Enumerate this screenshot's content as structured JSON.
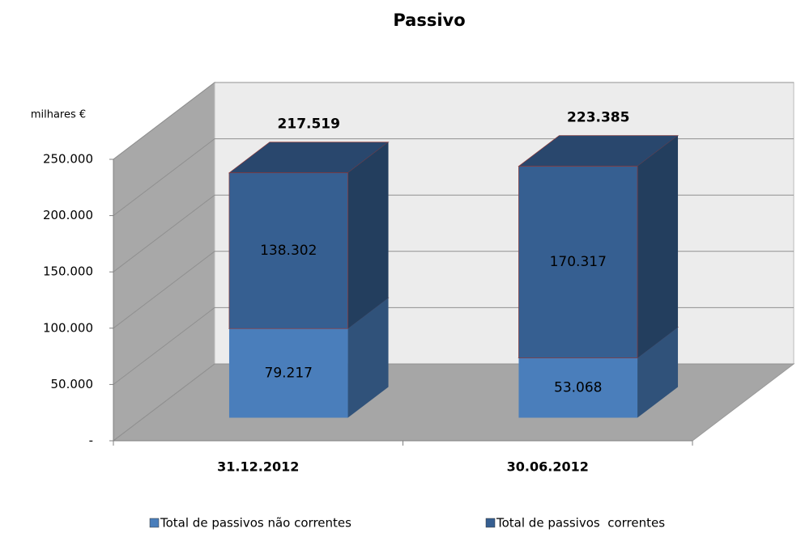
{
  "chart_data": {
    "type": "bar3d_stacked",
    "title": "Passivo",
    "y_label": "milhares €",
    "categories": [
      "31.12.2012",
      "30.06.2012"
    ],
    "series": [
      {
        "name": "Total de passivos não correntes",
        "color": "#4a7ebb",
        "values": [
          79217,
          53068
        ],
        "value_labels": [
          "79.217",
          "53.068"
        ]
      },
      {
        "name": "Total de passivos  correntes",
        "color": "#365f91",
        "values": [
          138302,
          170317
        ],
        "value_labels": [
          "138.302",
          "170.317"
        ]
      }
    ],
    "totals": {
      "values": [
        217519,
        223385
      ],
      "value_labels": [
        "217.519",
        "223.385"
      ]
    },
    "ylim": [
      0,
      250000
    ],
    "yticks": [
      {
        "value": 0,
        "label": "-"
      },
      {
        "value": 50000,
        "label": "50.000"
      },
      {
        "value": 100000,
        "label": "100.000"
      },
      {
        "value": 150000,
        "label": "150.000"
      },
      {
        "value": 200000,
        "label": "200.000"
      },
      {
        "value": 250000,
        "label": "250.000"
      }
    ],
    "grid": true,
    "legend": "bottom"
  }
}
